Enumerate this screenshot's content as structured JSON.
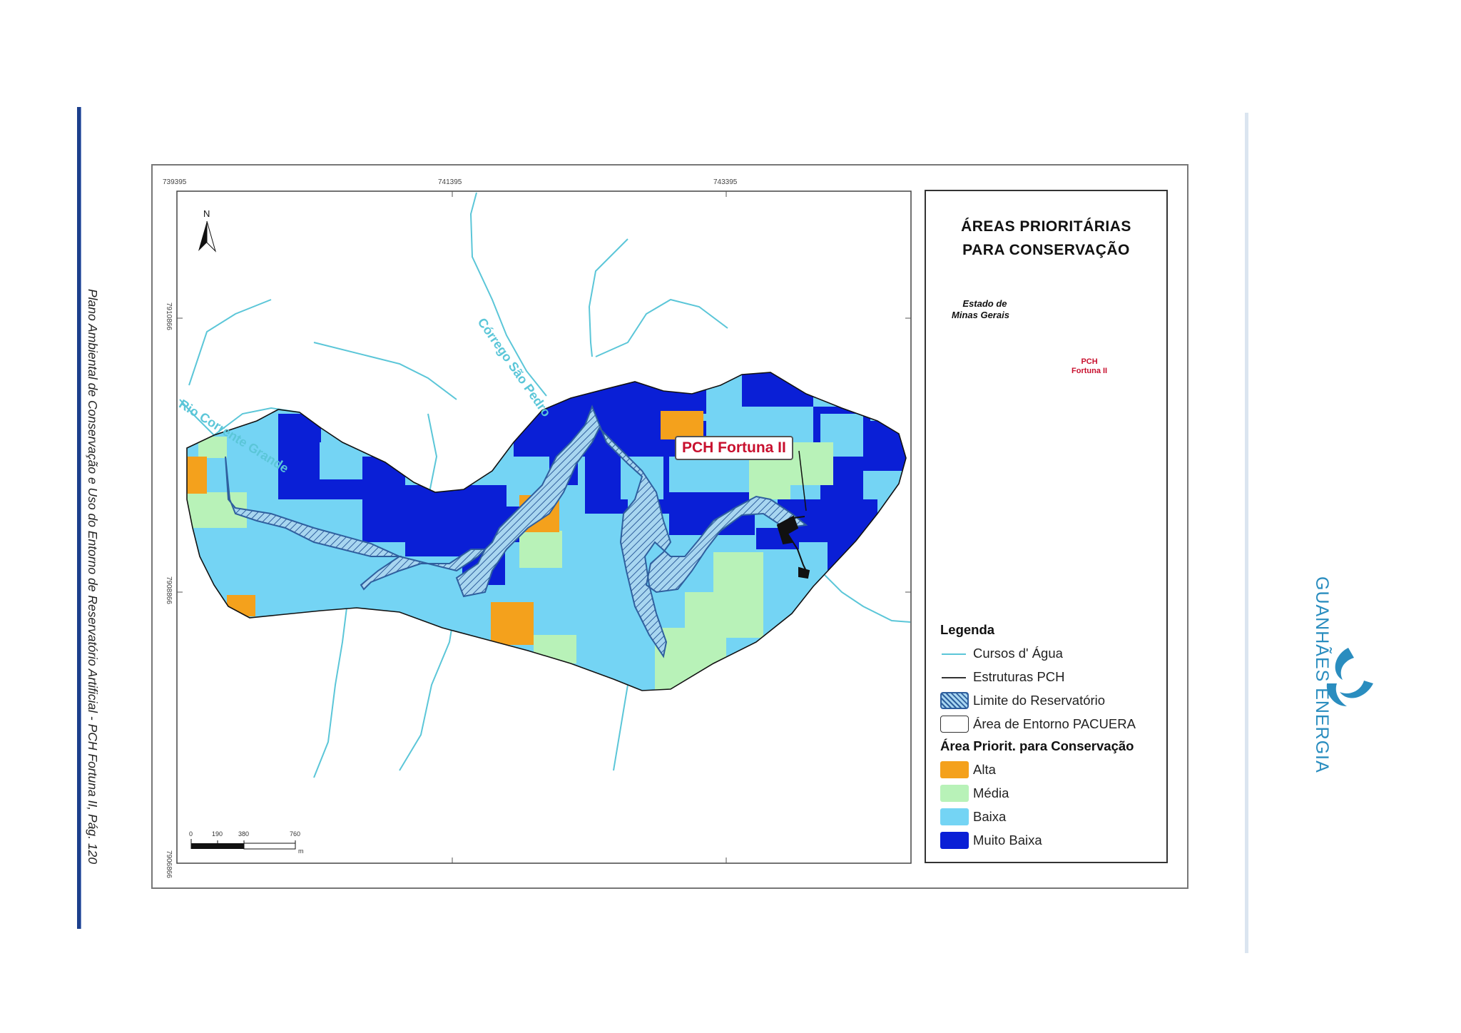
{
  "side_caption": "Plano Ambiental de Conservação e Uso do Entorno de Reservatório Artificial - PCH Fortuna II, Pág. 120",
  "brand": {
    "name": "GUANHÃES ENERGIA",
    "color": "#2a8dbf"
  },
  "map": {
    "pch_label": "PCH Fortuna II",
    "river_labels": [
      "Rio Corrente Grande",
      "Córrego São Pedro"
    ],
    "north": "N",
    "coords_top": [
      "739395",
      "741395",
      "743395"
    ],
    "coords_left": [
      "7910866",
      "7908866",
      "7906866"
    ],
    "scale": {
      "ticks": [
        "0",
        "190",
        "380",
        "760"
      ],
      "unit": "m"
    }
  },
  "legend": {
    "title_line1": "ÁREAS PRIORITÁRIAS",
    "title_line2": "PARA CONSERVAÇÃO",
    "inset_state_line1": "Estado de",
    "inset_state_line2": "Minas Gerais",
    "inset_pch_line1": "PCH",
    "inset_pch_line2": "Fortuna II",
    "heading": "Legenda",
    "items": [
      {
        "label": "Cursos d' Água",
        "color": "#5bc6d8"
      },
      {
        "label": "Estruturas PCH",
        "color": "#333333"
      },
      {
        "label": "Limite do Reservatório",
        "color": "#2f5f9e"
      },
      {
        "label": "Área de Entorno PACUERA",
        "color": "#ffffff"
      }
    ],
    "priority_heading": "Área Priorit. para Conservação",
    "priority_items": [
      {
        "label": "Alta",
        "color": "#f4a11c"
      },
      {
        "label": "Média",
        "color": "#b8f2b8"
      },
      {
        "label": "Baixa",
        "color": "#74d4f4"
      },
      {
        "label": "Muito Baixa",
        "color": "#0a1fd6"
      }
    ]
  },
  "colors": {
    "frame": "#777777",
    "nav_blue": "#1c3f8c"
  }
}
